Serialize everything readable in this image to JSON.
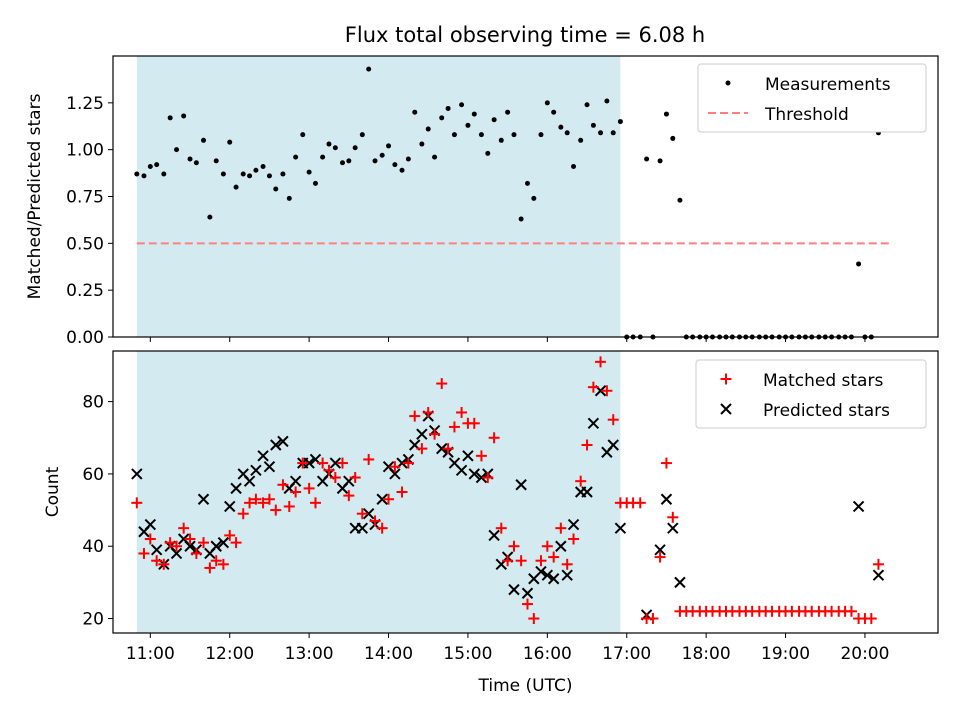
{
  "chart_data": {
    "type": "scatter",
    "title": "Flux total observing time = 6.08 h",
    "xlabel": "Time (UTC)",
    "x_tick_labels": [
      "11:00",
      "12:00",
      "13:00",
      "14:00",
      "15:00",
      "16:00",
      "17:00",
      "18:00",
      "19:00",
      "20:00"
    ],
    "x_tick_hours": [
      11,
      12,
      13,
      14,
      15,
      16,
      17,
      18,
      19,
      20
    ],
    "xlim_hours": [
      10.53,
      20.92
    ],
    "observing_window_hours": [
      10.83,
      16.92
    ],
    "colors": {
      "measurements": "#000000",
      "threshold": "#ff7f7f",
      "matched": "#ff0000",
      "predicted": "#000000",
      "window": "#d3eaf0"
    },
    "panels": [
      {
        "ylabel": "Matched/Predicted stars",
        "ylim": [
          0,
          1.5
        ],
        "y_ticks": [
          0,
          0.25,
          0.5,
          0.75,
          1.0,
          1.25
        ],
        "y_tick_labels": [
          "0.00",
          "0.25",
          "0.50",
          "0.75",
          "1.00",
          "1.25"
        ],
        "legend_position": "upper right",
        "legend": {
          "measurements": "Measurements",
          "threshold": "Threshold"
        },
        "threshold": 0.5,
        "threshold_range_hours": [
          10.83,
          20.33
        ],
        "measurements": {
          "x": [
            10.83,
            10.92,
            11.0,
            11.08,
            11.17,
            11.25,
            11.33,
            11.42,
            11.5,
            11.58,
            11.67,
            11.75,
            11.83,
            11.92,
            12.0,
            12.08,
            12.17,
            12.25,
            12.33,
            12.42,
            12.5,
            12.58,
            12.67,
            12.75,
            12.83,
            12.92,
            13.0,
            13.08,
            13.17,
            13.25,
            13.33,
            13.42,
            13.5,
            13.58,
            13.67,
            13.75,
            13.83,
            13.92,
            14.0,
            14.08,
            14.17,
            14.25,
            14.33,
            14.42,
            14.5,
            14.58,
            14.67,
            14.75,
            14.83,
            14.92,
            15.0,
            15.08,
            15.17,
            15.25,
            15.33,
            15.42,
            15.5,
            15.58,
            15.67,
            15.75,
            15.83,
            15.92,
            16.0,
            16.08,
            16.17,
            16.25,
            16.33,
            16.42,
            16.5,
            16.58,
            16.67,
            16.75,
            16.83,
            16.92,
            17.0,
            17.08,
            17.17,
            17.25,
            17.33,
            17.42,
            17.5,
            17.58,
            17.67,
            17.75,
            17.83,
            17.92,
            18.0,
            18.08,
            18.17,
            18.25,
            18.33,
            18.42,
            18.5,
            18.58,
            18.67,
            18.75,
            18.83,
            18.92,
            19.0,
            19.08,
            19.17,
            19.25,
            19.33,
            19.42,
            19.5,
            19.58,
            19.67,
            19.75,
            19.83,
            19.92,
            20.0,
            20.08,
            20.17
          ],
          "y": [
            0.87,
            0.86,
            0.91,
            0.92,
            0.87,
            1.17,
            1.0,
            1.18,
            0.95,
            0.93,
            1.05,
            0.64,
            0.94,
            0.87,
            1.04,
            0.8,
            0.87,
            0.86,
            0.89,
            0.91,
            0.86,
            0.79,
            0.87,
            0.74,
            0.96,
            1.08,
            0.88,
            0.82,
            0.96,
            1.03,
            1.01,
            0.93,
            0.94,
            1.01,
            1.08,
            1.43,
            0.94,
            0.97,
            1.02,
            0.92,
            0.89,
            0.95,
            1.2,
            1.03,
            1.11,
            0.96,
            1.17,
            1.22,
            1.08,
            1.24,
            1.13,
            1.19,
            1.08,
            0.98,
            1.16,
            1.05,
            1.2,
            1.08,
            0.63,
            0.82,
            0.74,
            1.08,
            1.25,
            1.2,
            1.12,
            1.09,
            0.91,
            1.05,
            1.24,
            1.13,
            1.09,
            1.26,
            1.09,
            1.15,
            0.0,
            0.0,
            0.0,
            0.95,
            0.0,
            0.94,
            1.19,
            1.06,
            0.73,
            0.0,
            0.0,
            0.0,
            0.0,
            0.0,
            0.0,
            0.0,
            0.0,
            0.0,
            0.0,
            0.0,
            0.0,
            0.0,
            0.0,
            0.0,
            0.0,
            0.0,
            0.0,
            0.0,
            0.0,
            0.0,
            0.0,
            0.0,
            0.0,
            0.0,
            0.0,
            0.39,
            0.0,
            0.0,
            1.09
          ]
        }
      },
      {
        "ylabel": "Count",
        "ylim": [
          16,
          94
        ],
        "y_ticks": [
          20,
          40,
          60,
          80
        ],
        "y_tick_labels": [
          "20",
          "40",
          "60",
          "80"
        ],
        "legend_position": "upper right",
        "legend": {
          "matched": "Matched stars",
          "predicted": "Predicted stars"
        },
        "matched": {
          "x": [
            10.83,
            10.92,
            11.0,
            11.08,
            11.17,
            11.25,
            11.33,
            11.42,
            11.5,
            11.58,
            11.67,
            11.75,
            11.83,
            11.92,
            12.0,
            12.08,
            12.17,
            12.25,
            12.33,
            12.42,
            12.5,
            12.58,
            12.67,
            12.75,
            12.83,
            12.92,
            13.0,
            13.08,
            13.17,
            13.25,
            13.33,
            13.42,
            13.5,
            13.58,
            13.67,
            13.75,
            13.83,
            13.92,
            14.0,
            14.08,
            14.17,
            14.25,
            14.33,
            14.42,
            14.5,
            14.58,
            14.67,
            14.75,
            14.83,
            14.92,
            15.0,
            15.08,
            15.17,
            15.25,
            15.33,
            15.42,
            15.5,
            15.58,
            15.67,
            15.75,
            15.83,
            15.92,
            16.0,
            16.08,
            16.17,
            16.25,
            16.33,
            16.42,
            16.5,
            16.58,
            16.67,
            16.75,
            16.83,
            16.92,
            17.0,
            17.08,
            17.17,
            17.25,
            17.33,
            17.42,
            17.5,
            17.58,
            17.67,
            17.75,
            17.83,
            17.92,
            18.0,
            18.08,
            18.17,
            18.25,
            18.33,
            18.42,
            18.5,
            18.58,
            18.67,
            18.75,
            18.83,
            18.92,
            19.0,
            19.08,
            19.17,
            19.25,
            19.33,
            19.42,
            19.5,
            19.58,
            19.67,
            19.75,
            19.83,
            19.92,
            20.0,
            20.08,
            20.17
          ],
          "y": [
            52,
            38,
            42,
            36,
            35,
            41,
            40,
            45,
            42,
            38,
            41,
            34,
            36,
            35,
            43,
            41,
            49,
            52,
            53,
            52,
            53,
            50,
            57,
            51,
            55,
            63,
            56,
            52,
            63,
            61,
            59,
            63,
            54,
            59,
            49,
            64,
            47,
            45,
            53,
            62,
            55,
            63,
            76,
            67,
            77,
            71,
            85,
            67,
            73,
            77,
            74,
            74,
            65,
            59,
            70,
            45,
            36,
            40,
            36,
            24,
            20,
            36,
            40,
            37,
            45,
            35,
            42,
            58,
            68,
            84,
            91,
            83,
            75,
            52,
            52,
            52,
            52,
            20,
            20,
            37,
            63,
            48,
            22,
            22,
            22,
            22,
            22,
            22,
            22,
            22,
            22,
            22,
            22,
            22,
            22,
            22,
            22,
            22,
            22,
            22,
            22,
            22,
            22,
            22,
            22,
            22,
            22,
            22,
            22,
            20,
            20,
            20,
            35
          ]
        },
        "predicted": {
          "x": [
            10.83,
            10.92,
            11.0,
            11.08,
            11.17,
            11.25,
            11.33,
            11.42,
            11.5,
            11.58,
            11.67,
            11.75,
            11.83,
            11.92,
            12.0,
            12.08,
            12.17,
            12.25,
            12.33,
            12.42,
            12.5,
            12.58,
            12.67,
            12.75,
            12.83,
            12.92,
            13.0,
            13.08,
            13.17,
            13.25,
            13.33,
            13.42,
            13.5,
            13.58,
            13.67,
            13.75,
            13.83,
            13.92,
            14.0,
            14.08,
            14.17,
            14.25,
            14.33,
            14.42,
            14.5,
            14.58,
            14.67,
            14.75,
            14.83,
            14.92,
            15.0,
            15.08,
            15.17,
            15.25,
            15.33,
            15.42,
            15.5,
            15.58,
            15.67,
            15.75,
            15.83,
            15.92,
            16.0,
            16.08,
            16.17,
            16.25,
            16.33,
            16.42,
            16.5,
            16.58,
            16.67,
            16.75,
            16.83,
            16.92,
            17.25,
            17.42,
            17.5,
            17.58,
            17.67,
            19.92,
            20.17
          ],
          "y": [
            60,
            44,
            46,
            39,
            35,
            40,
            38,
            42,
            40,
            39,
            53,
            38,
            40,
            41,
            51,
            56,
            60,
            58,
            61,
            65,
            62,
            68,
            69,
            56,
            58,
            63,
            63,
            64,
            58,
            60,
            63,
            56,
            58,
            45,
            45,
            49,
            46,
            53,
            62,
            60,
            63,
            64,
            68,
            71,
            76,
            72,
            67,
            66,
            63,
            61,
            65,
            60,
            59,
            60,
            43,
            35,
            37,
            28,
            57,
            27,
            31,
            33,
            32,
            31,
            40,
            32,
            46,
            55,
            55,
            74,
            83,
            66,
            68,
            45,
            21,
            39,
            53,
            45,
            30,
            51,
            32
          ]
        }
      }
    ]
  }
}
